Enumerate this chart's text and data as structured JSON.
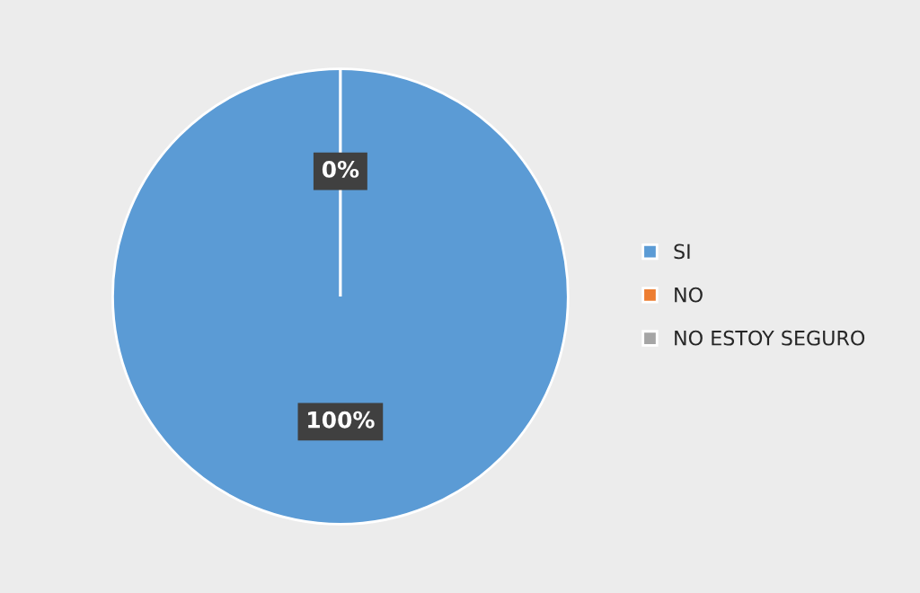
{
  "chart_data": {
    "type": "pie",
    "categories": [
      "SI",
      "NO",
      "NO ESTOY SEGURO"
    ],
    "values": [
      100,
      0,
      0
    ],
    "colors": [
      "#5b9bd5",
      "#ed7d31",
      "#a5a5a5"
    ],
    "value_labels": [
      "100%",
      "0%",
      null
    ],
    "legend": "right"
  }
}
